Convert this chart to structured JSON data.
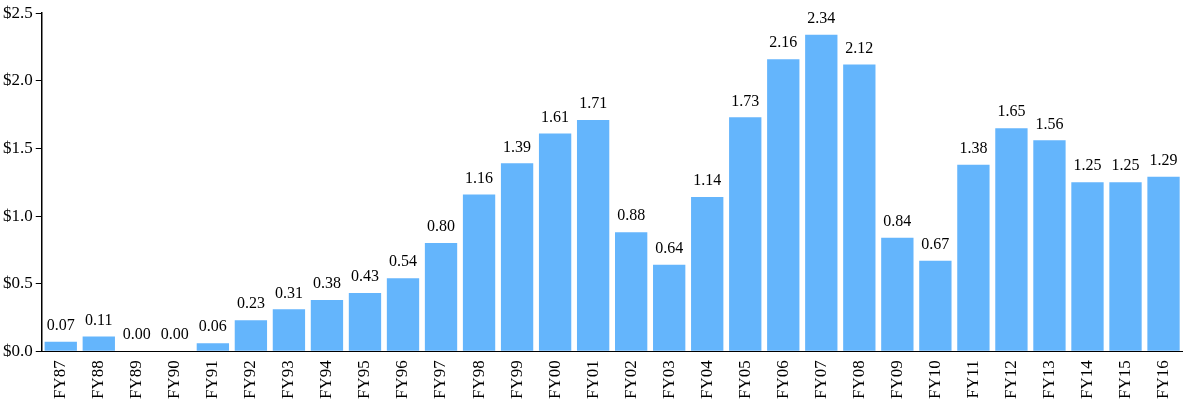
{
  "chart_data": {
    "type": "bar",
    "categories": [
      "FY87",
      "FY88",
      "FY89",
      "FY90",
      "FY91",
      "FY92",
      "FY93",
      "FY94",
      "FY95",
      "FY96",
      "FY97",
      "FY98",
      "FY99",
      "FY00",
      "FY01",
      "FY02",
      "FY03",
      "FY04",
      "FY05",
      "FY06",
      "FY07",
      "FY08",
      "FY09",
      "FY10",
      "FY11",
      "FY12",
      "FY13",
      "FY14",
      "FY15",
      "FY16"
    ],
    "values": [
      0.07,
      0.11,
      0,
      0,
      0.06,
      0.23,
      0.31,
      0.38,
      0.43,
      0.54,
      0.8,
      1.16,
      1.39,
      1.61,
      1.71,
      0.88,
      0.64,
      1.14,
      1.73,
      2.16,
      2.34,
      2.12,
      0.84,
      0.67,
      1.38,
      1.65,
      1.56,
      1.25,
      1.25,
      1.29
    ],
    "value_labels": [
      "0.07",
      "0.11",
      "0.00",
      "0.00",
      "0.06",
      "0.23",
      "0.31",
      "0.38",
      "0.43",
      "0.54",
      "0.80",
      "1.16",
      "1.39",
      "1.61",
      "1.71",
      "0.88",
      "0.64",
      "1.14",
      "1.73",
      "2.16",
      "2.34",
      "2.12",
      "0.84",
      "0.67",
      "1.38",
      "1.65",
      "1.56",
      "1.25",
      "1.25",
      "1.29"
    ],
    "color": "#64b5fc",
    "ylim": [
      0,
      2.5
    ],
    "yticks": [
      {
        "value": 0,
        "label": "$0.0"
      },
      {
        "value": 0.5,
        "label": "$0.5"
      },
      {
        "value": 1,
        "label": "$1.0"
      },
      {
        "value": 1.5,
        "label": "$1.5"
      },
      {
        "value": 2,
        "label": "$2.0"
      },
      {
        "value": 2.5,
        "label": "$2.5"
      }
    ],
    "grid": false,
    "legend": false
  }
}
